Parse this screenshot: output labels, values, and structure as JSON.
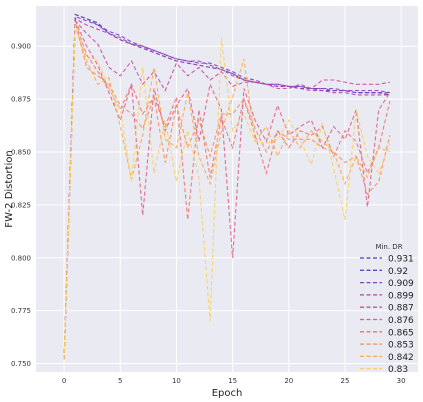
{
  "chart_data": {
    "type": "line",
    "xlabel": "Epoch",
    "ylabel": "FW-2 Distortion",
    "xlim": [
      -2.5,
      31.5
    ],
    "ylim": [
      0.746,
      0.919
    ],
    "xticks": [
      0,
      5,
      10,
      15,
      20,
      25,
      30
    ],
    "yticks": [
      0.75,
      0.775,
      0.8,
      0.825,
      0.85,
      0.875,
      0.9
    ],
    "ytick_labels": [
      "0.750",
      "0.775",
      "0.800",
      "0.825",
      "0.850",
      "0.875",
      "0.900"
    ],
    "grid": true,
    "legend": {
      "title": "Min. DR",
      "position": "lower-right"
    },
    "background": "#eaeaf2",
    "x": [
      0,
      1,
      2,
      3,
      4,
      5,
      6,
      7,
      8,
      9,
      10,
      11,
      12,
      13,
      14,
      15,
      16,
      17,
      18,
      19,
      20,
      21,
      22,
      23,
      24,
      25,
      26,
      27,
      28,
      29
    ],
    "series": [
      {
        "name": "0.931",
        "color": "#4a3cbf",
        "values": [
          0.752,
          0.915,
          0.913,
          0.911,
          0.906,
          0.903,
          0.901,
          0.899,
          0.897,
          0.895,
          0.893,
          0.892,
          0.891,
          0.89,
          0.889,
          0.887,
          0.884,
          0.883,
          0.882,
          0.881,
          0.881,
          0.88,
          0.88,
          0.879,
          0.879,
          0.879,
          0.878,
          0.878,
          0.878,
          0.877
        ]
      },
      {
        "name": "0.92",
        "color": "#6a3dc5",
        "values": [
          0.752,
          0.915,
          0.913,
          0.91,
          0.907,
          0.905,
          0.902,
          0.9,
          0.898,
          0.896,
          0.894,
          0.893,
          0.892,
          0.892,
          0.89,
          0.888,
          0.885,
          0.884,
          0.882,
          0.882,
          0.881,
          0.881,
          0.88,
          0.88,
          0.879,
          0.879,
          0.878,
          0.878,
          0.878,
          0.878
        ]
      },
      {
        "name": "0.909",
        "color": "#8c3fbe",
        "values": [
          0.752,
          0.914,
          0.912,
          0.91,
          0.906,
          0.904,
          0.901,
          0.9,
          0.898,
          0.896,
          0.894,
          0.893,
          0.893,
          0.891,
          0.889,
          0.887,
          0.884,
          0.883,
          0.882,
          0.882,
          0.881,
          0.881,
          0.88,
          0.88,
          0.88,
          0.879,
          0.879,
          0.879,
          0.879,
          0.878
        ]
      },
      {
        "name": "0.899",
        "color": "#ab45b0",
        "values": [
          0.752,
          0.913,
          0.91,
          0.908,
          0.906,
          0.903,
          0.901,
          0.9,
          0.897,
          0.895,
          0.893,
          0.892,
          0.891,
          0.89,
          0.889,
          0.886,
          0.884,
          0.883,
          0.882,
          0.881,
          0.881,
          0.88,
          0.879,
          0.879,
          0.878,
          0.878,
          0.877,
          0.877,
          0.877,
          0.877
        ]
      },
      {
        "name": "0.887",
        "color": "#c84f9e",
        "values": [
          0.752,
          0.912,
          0.906,
          0.901,
          0.89,
          0.886,
          0.893,
          0.882,
          0.888,
          0.879,
          0.892,
          0.886,
          0.89,
          0.884,
          0.888,
          0.881,
          0.883,
          0.883,
          0.882,
          0.88,
          0.88,
          0.882,
          0.88,
          0.884,
          0.884,
          0.883,
          0.882,
          0.882,
          0.882,
          0.883
        ]
      },
      {
        "name": "0.876",
        "color": "#e05f86",
        "values": [
          0.752,
          0.912,
          0.9,
          0.891,
          0.878,
          0.865,
          0.882,
          0.82,
          0.88,
          0.86,
          0.872,
          0.88,
          0.855,
          0.882,
          0.87,
          0.8,
          0.88,
          0.865,
          0.855,
          0.872,
          0.858,
          0.862,
          0.865,
          0.852,
          0.862,
          0.856,
          0.87,
          0.824,
          0.87,
          0.878
        ]
      },
      {
        "name": "0.865",
        "color": "#ed7470",
        "values": [
          0.752,
          0.911,
          0.896,
          0.888,
          0.88,
          0.87,
          0.882,
          0.868,
          0.876,
          0.862,
          0.876,
          0.818,
          0.87,
          0.838,
          0.866,
          0.852,
          0.875,
          0.858,
          0.84,
          0.86,
          0.852,
          0.86,
          0.858,
          0.862,
          0.848,
          0.86,
          0.855,
          0.84,
          0.852,
          0.874
        ]
      },
      {
        "name": "0.853",
        "color": "#f78d5d",
        "values": [
          0.752,
          0.911,
          0.89,
          0.886,
          0.882,
          0.872,
          0.868,
          0.861,
          0.876,
          0.845,
          0.872,
          0.852,
          0.865,
          0.848,
          0.868,
          0.868,
          0.875,
          0.861,
          0.85,
          0.86,
          0.856,
          0.856,
          0.856,
          0.852,
          0.85,
          0.845,
          0.848,
          0.83,
          0.836,
          0.858
        ]
      },
      {
        "name": "0.842",
        "color": "#fcab4a",
        "values": [
          0.752,
          0.91,
          0.893,
          0.882,
          0.885,
          0.862,
          0.837,
          0.858,
          0.89,
          0.856,
          0.852,
          0.878,
          0.848,
          0.835,
          0.86,
          0.876,
          0.894,
          0.855,
          0.862,
          0.848,
          0.86,
          0.852,
          0.86,
          0.855,
          0.85,
          0.835,
          0.848,
          0.838,
          0.852,
          0.85
        ]
      },
      {
        "name": "0.83",
        "color": "#f9d25c",
        "values": [
          0.752,
          0.91,
          0.895,
          0.893,
          0.88,
          0.87,
          0.836,
          0.89,
          0.84,
          0.865,
          0.836,
          0.86,
          0.838,
          0.77,
          0.904,
          0.86,
          0.868,
          0.855,
          0.854,
          0.856,
          0.865,
          0.856,
          0.844,
          0.864,
          0.842,
          0.818,
          0.87,
          0.848,
          0.84,
          0.854
        ]
      }
    ]
  }
}
